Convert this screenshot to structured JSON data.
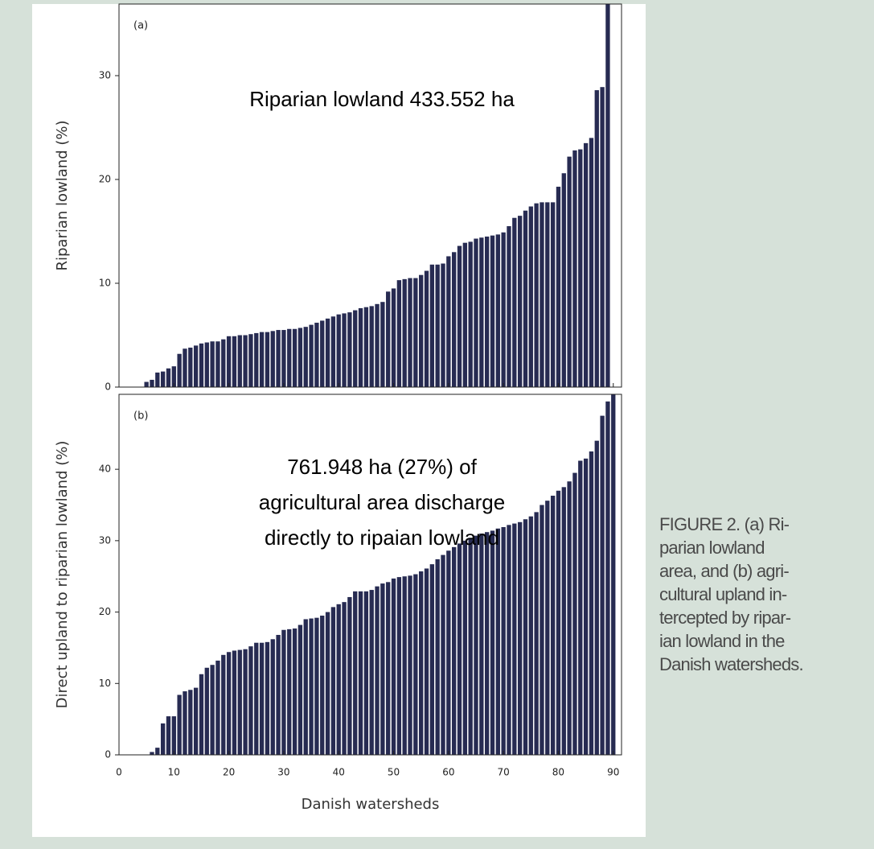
{
  "chart_data": [
    {
      "type": "bar",
      "panel_label": "(a)",
      "ylabel": "Riparian lowland (%)",
      "annotation": [
        "Riparian lowland 433.552 ha"
      ],
      "color": "#272b52",
      "x": [
        5,
        6,
        7,
        8,
        9,
        10,
        11,
        12,
        13,
        14,
        15,
        16,
        17,
        18,
        19,
        20,
        21,
        22,
        23,
        24,
        25,
        26,
        27,
        28,
        29,
        30,
        31,
        32,
        33,
        34,
        35,
        36,
        37,
        38,
        39,
        40,
        41,
        42,
        43,
        44,
        45,
        46,
        47,
        48,
        49,
        50,
        51,
        52,
        53,
        54,
        55,
        56,
        57,
        58,
        59,
        60,
        61,
        62,
        63,
        64,
        65,
        66,
        67,
        68,
        69,
        70,
        71,
        72,
        73,
        74,
        75,
        76,
        77,
        78,
        79,
        80,
        81,
        82,
        83,
        84,
        85,
        86,
        87,
        88,
        89
      ],
      "values": [
        0.5,
        0.7,
        1.4,
        1.5,
        1.8,
        2.0,
        3.2,
        3.7,
        3.8,
        4.0,
        4.2,
        4.3,
        4.4,
        4.4,
        4.6,
        4.9,
        4.9,
        5.0,
        5.0,
        5.1,
        5.2,
        5.3,
        5.3,
        5.4,
        5.5,
        5.5,
        5.6,
        5.6,
        5.7,
        5.8,
        6.0,
        6.2,
        6.4,
        6.6,
        6.8,
        7.0,
        7.1,
        7.2,
        7.4,
        7.6,
        7.7,
        7.8,
        8.0,
        8.2,
        9.2,
        9.5,
        10.3,
        10.4,
        10.5,
        10.5,
        10.8,
        11.2,
        11.8,
        11.8,
        11.9,
        12.6,
        13.0,
        13.6,
        13.9,
        14.0,
        14.3,
        14.4,
        14.5,
        14.6,
        14.7,
        14.9,
        15.5,
        16.3,
        16.5,
        17.0,
        17.4,
        17.7,
        17.8,
        17.8,
        17.8,
        19.3,
        20.6,
        22.2,
        22.8,
        22.9,
        23.5,
        24.0,
        28.6,
        28.9,
        37
      ],
      "xlim": [
        0,
        91.5
      ],
      "ylim": [
        0,
        36.9
      ],
      "yticks": [
        0,
        10,
        20,
        30
      ]
    },
    {
      "type": "bar",
      "panel_label": "(b)",
      "ylabel": "Direct upland to riparian lowland (%)",
      "xlabel": "Danish watersheds",
      "annotation": [
        "761.948 ha (27%) of",
        "agricultural area discharge",
        "directly to ripaian lowland"
      ],
      "color": "#272b52",
      "x": [
        6,
        7,
        8,
        9,
        10,
        11,
        12,
        13,
        14,
        15,
        16,
        17,
        18,
        19,
        20,
        21,
        22,
        23,
        24,
        25,
        26,
        27,
        28,
        29,
        30,
        31,
        32,
        33,
        34,
        35,
        36,
        37,
        38,
        39,
        40,
        41,
        42,
        43,
        44,
        45,
        46,
        47,
        48,
        49,
        50,
        51,
        52,
        53,
        54,
        55,
        56,
        57,
        58,
        59,
        60,
        61,
        62,
        63,
        64,
        65,
        66,
        67,
        68,
        69,
        70,
        71,
        72,
        73,
        74,
        75,
        76,
        77,
        78,
        79,
        80,
        81,
        82,
        83,
        84,
        85,
        86,
        87,
        88,
        89,
        90
      ],
      "values": [
        0.4,
        1.0,
        4.4,
        5.4,
        5.4,
        8.4,
        8.9,
        9.1,
        9.4,
        11.3,
        12.2,
        12.6,
        13.2,
        14.0,
        14.4,
        14.6,
        14.7,
        14.8,
        15.2,
        15.7,
        15.7,
        15.8,
        16.2,
        16.8,
        17.5,
        17.6,
        17.7,
        18.2,
        19.0,
        19.1,
        19.2,
        19.5,
        20.0,
        20.7,
        21.1,
        21.4,
        22.1,
        22.9,
        22.9,
        22.9,
        23.1,
        23.6,
        24.0,
        24.2,
        24.7,
        24.9,
        25.0,
        25.1,
        25.3,
        25.7,
        26.1,
        26.7,
        27.4,
        28.0,
        28.6,
        29.1,
        29.6,
        30.0,
        30.4,
        30.7,
        31.0,
        31.2,
        31.4,
        31.7,
        31.9,
        32.2,
        32.4,
        32.6,
        33.0,
        33.4,
        34.0,
        35.0,
        35.6,
        36.3,
        37.0,
        37.5,
        38.3,
        39.5,
        41.2,
        41.5,
        42.5,
        44.0,
        47.5,
        49.5,
        51
      ],
      "xlim": [
        0,
        91.5
      ],
      "ylim": [
        0,
        50.5
      ],
      "xticks": [
        0,
        10,
        20,
        30,
        40,
        50,
        60,
        70,
        80,
        90
      ],
      "yticks": [
        0,
        10,
        20,
        30,
        40
      ]
    }
  ],
  "caption": {
    "lines": [
      "FIGURE 2. (a) Ri-",
      "parian lowland",
      "area, and (b) agri-",
      "cultural upland in-",
      "tercepted by ripar-",
      "ian lowland in the",
      "Danish watersheds."
    ]
  }
}
